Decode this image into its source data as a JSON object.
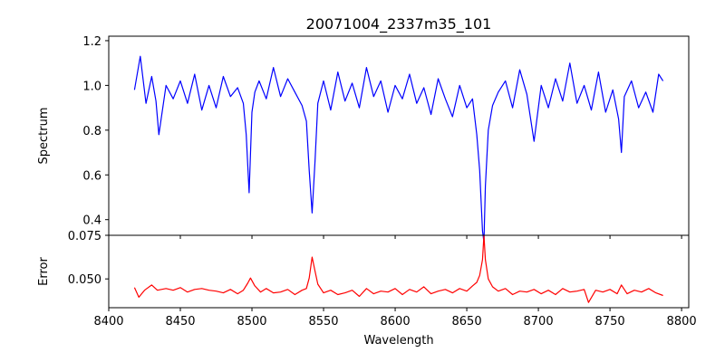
{
  "chart_data": [
    {
      "type": "line",
      "title": "20071004_2337m35_101",
      "xlabel": "",
      "ylabel": "Spectrum",
      "xlim": [
        8400,
        8805
      ],
      "ylim": [
        0.33,
        1.22
      ],
      "xticks": [
        8400,
        8450,
        8500,
        8550,
        8600,
        8650,
        8700,
        8750,
        8800
      ],
      "xticks_labeled": false,
      "yticks": [
        0.4,
        0.6,
        0.8,
        1.0,
        1.2
      ],
      "ytick_labels": [
        "0.4",
        "0.6",
        "0.8",
        "1.0",
        "1.2"
      ],
      "grid": false,
      "series": [
        {
          "color": "#0000ff",
          "x": [
            8418,
            8422,
            8426,
            8430,
            8433,
            8435,
            8440,
            8445,
            8450,
            8455,
            8460,
            8465,
            8470,
            8475,
            8480,
            8485,
            8490,
            8494,
            8496,
            8498,
            8500,
            8502,
            8505,
            8510,
            8515,
            8520,
            8525,
            8530,
            8535,
            8538,
            8540,
            8542,
            8544,
            8546,
            8550,
            8555,
            8560,
            8565,
            8570,
            8575,
            8580,
            8585,
            8590,
            8595,
            8600,
            8605,
            8610,
            8615,
            8620,
            8625,
            8630,
            8635,
            8640,
            8645,
            8650,
            8654,
            8657,
            8659,
            8661,
            8662,
            8663,
            8665,
            8668,
            8672,
            8677,
            8682,
            8687,
            8692,
            8697,
            8702,
            8707,
            8712,
            8717,
            8722,
            8727,
            8732,
            8737,
            8742,
            8747,
            8752,
            8756,
            8758,
            8760,
            8765,
            8770,
            8775,
            8780,
            8784,
            8787
          ],
          "values": [
            0.98,
            1.13,
            0.92,
            1.04,
            0.93,
            0.78,
            1.0,
            0.94,
            1.02,
            0.92,
            1.05,
            0.89,
            1.0,
            0.9,
            1.04,
            0.95,
            0.99,
            0.92,
            0.78,
            0.52,
            0.88,
            0.97,
            1.02,
            0.94,
            1.08,
            0.95,
            1.03,
            0.97,
            0.91,
            0.84,
            0.62,
            0.43,
            0.66,
            0.92,
            1.02,
            0.89,
            1.06,
            0.93,
            1.01,
            0.9,
            1.08,
            0.95,
            1.02,
            0.88,
            1.0,
            0.94,
            1.05,
            0.92,
            0.99,
            0.87,
            1.03,
            0.94,
            0.86,
            1.0,
            0.9,
            0.94,
            0.78,
            0.62,
            0.35,
            0.3,
            0.55,
            0.8,
            0.91,
            0.97,
            1.02,
            0.9,
            1.07,
            0.96,
            0.75,
            1.0,
            0.9,
            1.03,
            0.93,
            1.1,
            0.92,
            1.0,
            0.89,
            1.06,
            0.88,
            0.98,
            0.85,
            0.7,
            0.95,
            1.02,
            0.9,
            0.97,
            0.88,
            1.05,
            1.02
          ]
        }
      ]
    },
    {
      "type": "line",
      "title": "",
      "xlabel": "Wavelength",
      "ylabel": "Error",
      "xlim": [
        8400,
        8805
      ],
      "ylim": [
        0.0335,
        0.075
      ],
      "xticks": [
        8400,
        8450,
        8500,
        8550,
        8600,
        8650,
        8700,
        8750,
        8800
      ],
      "xtick_labels": [
        "8400",
        "8450",
        "8500",
        "8550",
        "8600",
        "8650",
        "8700",
        "8750",
        "8800"
      ],
      "yticks": [
        0.05,
        0.075
      ],
      "ytick_labels": [
        "0.050",
        "0.075"
      ],
      "grid": false,
      "series": [
        {
          "color": "#ff0000",
          "x": [
            8418,
            8421,
            8425,
            8430,
            8434,
            8440,
            8445,
            8450,
            8455,
            8460,
            8465,
            8470,
            8475,
            8480,
            8485,
            8490,
            8494,
            8497,
            8499,
            8502,
            8506,
            8510,
            8515,
            8520,
            8525,
            8530,
            8535,
            8538,
            8540,
            8542,
            8544,
            8546,
            8550,
            8555,
            8560,
            8565,
            8570,
            8575,
            8580,
            8585,
            8590,
            8595,
            8600,
            8605,
            8610,
            8615,
            8620,
            8625,
            8630,
            8635,
            8640,
            8645,
            8650,
            8654,
            8657,
            8659,
            8661,
            8662,
            8663,
            8665,
            8668,
            8672,
            8677,
            8682,
            8687,
            8692,
            8697,
            8702,
            8707,
            8712,
            8717,
            8722,
            8727,
            8732,
            8735,
            8740,
            8745,
            8750,
            8755,
            8758,
            8762,
            8767,
            8772,
            8777,
            8782,
            8787
          ],
          "values": [
            0.045,
            0.0395,
            0.0435,
            0.0465,
            0.0435,
            0.0445,
            0.0435,
            0.045,
            0.0425,
            0.044,
            0.0445,
            0.0435,
            0.043,
            0.042,
            0.044,
            0.0415,
            0.0435,
            0.0475,
            0.0505,
            0.046,
            0.0425,
            0.0445,
            0.042,
            0.0425,
            0.044,
            0.041,
            0.0435,
            0.0445,
            0.0505,
            0.0625,
            0.0545,
            0.047,
            0.042,
            0.0435,
            0.041,
            0.042,
            0.0435,
            0.04,
            0.0445,
            0.0415,
            0.043,
            0.0425,
            0.0445,
            0.041,
            0.044,
            0.0425,
            0.0455,
            0.0415,
            0.043,
            0.044,
            0.042,
            0.0445,
            0.043,
            0.046,
            0.048,
            0.052,
            0.061,
            0.075,
            0.061,
            0.05,
            0.0455,
            0.043,
            0.0445,
            0.041,
            0.043,
            0.0425,
            0.044,
            0.0415,
            0.0435,
            0.041,
            0.0445,
            0.0425,
            0.043,
            0.044,
            0.0365,
            0.0435,
            0.0425,
            0.044,
            0.0415,
            0.0465,
            0.0415,
            0.0435,
            0.0425,
            0.0445,
            0.042,
            0.0405
          ]
        }
      ]
    }
  ]
}
